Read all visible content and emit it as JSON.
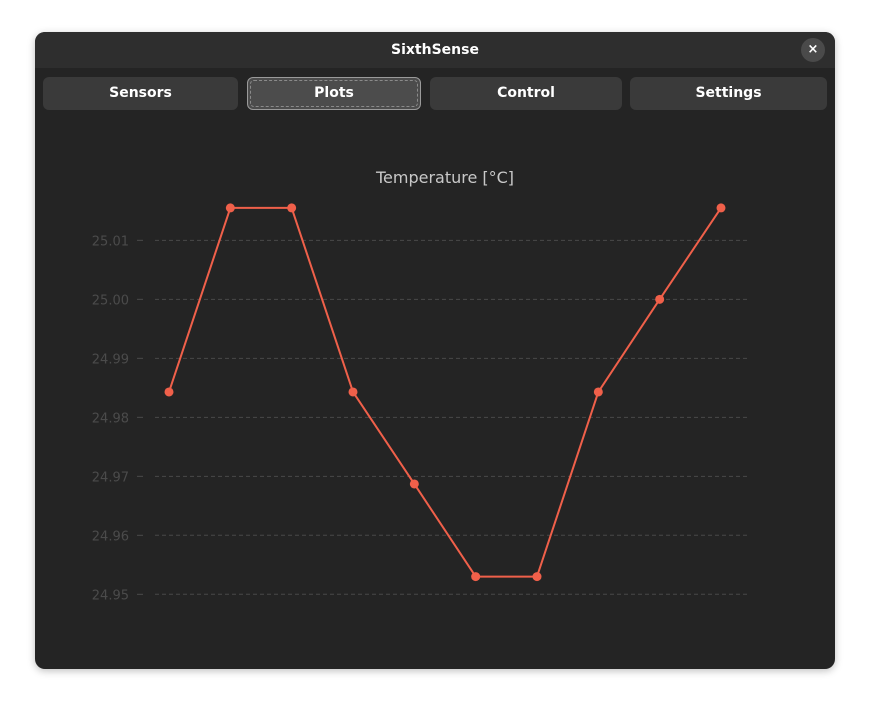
{
  "window": {
    "title": "SixthSense",
    "close_icon": "×"
  },
  "tabs": [
    {
      "label": "Sensors",
      "active": false
    },
    {
      "label": "Plots",
      "active": true
    },
    {
      "label": "Control",
      "active": false
    },
    {
      "label": "Settings",
      "active": false
    }
  ],
  "colors": {
    "line": "#f0604a",
    "background": "#242424",
    "grid": "#484848",
    "tick": "#4b4b4b",
    "title": "#c8c8c8"
  },
  "chart_data": {
    "type": "line",
    "title": "Temperature [°C]",
    "xlabel": "",
    "ylabel": "",
    "ylim": [
      24.947,
      25.0165
    ],
    "yticks": [
      "24.95",
      "24.96",
      "24.97",
      "24.98",
      "24.99",
      "25.00",
      "25.01"
    ],
    "grid": true,
    "series": [
      {
        "values": [
          24.9843,
          25.0155,
          25.0155,
          24.9843,
          24.9687,
          24.953,
          24.953,
          24.9843,
          25.0,
          25.0155
        ]
      }
    ]
  }
}
